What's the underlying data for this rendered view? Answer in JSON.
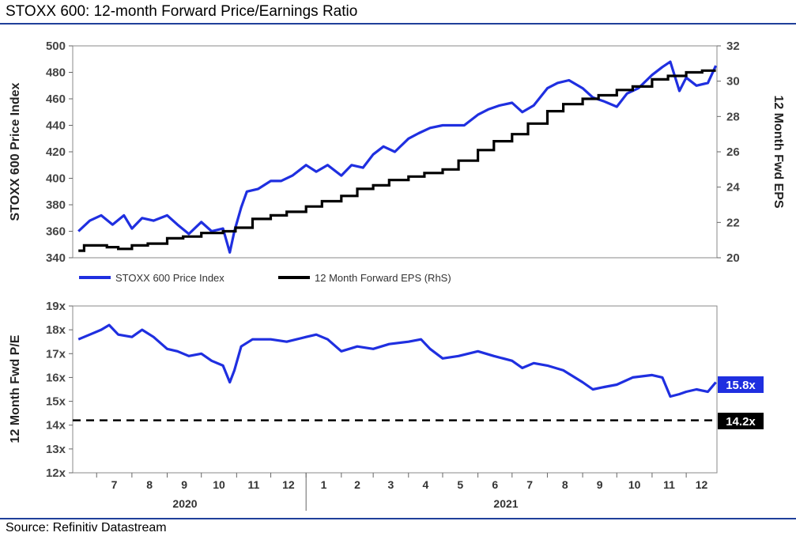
{
  "title": "STOXX 600: 12-month Forward Price/Earnings Ratio",
  "source": "Source: Refinitiv Datastream",
  "colors": {
    "price": "#1f2fe0",
    "eps": "#000000",
    "pe": "#1f2fe0",
    "accent_rule": "#1f3f9a"
  },
  "chart_data": [
    {
      "type": "line",
      "ylabel": "STOXX 600 Price Index",
      "y2label": "12 Month Fwd EPS",
      "ylim": [
        340,
        500
      ],
      "y2lim": [
        20,
        32
      ],
      "yticks": [
        "340",
        "360",
        "380",
        "400",
        "420",
        "440",
        "460",
        "480",
        "500"
      ],
      "y2ticks": [
        "20",
        "22",
        "24",
        "26",
        "28",
        "30",
        "32"
      ],
      "legend": [
        "STOXX 600 Price Index",
        "12 Month Forward EPS (RhS)"
      ],
      "legend_position": "bottom",
      "series": [
        {
          "name": "STOXX 600 Price Index",
          "axis": "left",
          "x": [
            "2020-06-15",
            "2020-06-25",
            "2020-07-05",
            "2020-07-15",
            "2020-07-25",
            "2020-08-01",
            "2020-08-10",
            "2020-08-20",
            "2020-09-01",
            "2020-09-10",
            "2020-09-20",
            "2020-10-01",
            "2020-10-10",
            "2020-10-20",
            "2020-10-26",
            "2020-10-30",
            "2020-11-05",
            "2020-11-10",
            "2020-11-20",
            "2020-12-01",
            "2020-12-10",
            "2020-12-20",
            "2021-01-01",
            "2021-01-10",
            "2021-01-20",
            "2021-02-01",
            "2021-02-10",
            "2021-02-20",
            "2021-03-01",
            "2021-03-10",
            "2021-03-20",
            "2021-04-01",
            "2021-04-10",
            "2021-04-20",
            "2021-05-01",
            "2021-05-10",
            "2021-05-20",
            "2021-06-01",
            "2021-06-10",
            "2021-06-20",
            "2021-07-01",
            "2021-07-10",
            "2021-07-20",
            "2021-08-01",
            "2021-08-10",
            "2021-08-20",
            "2021-09-01",
            "2021-09-10",
            "2021-09-20",
            "2021-10-01",
            "2021-10-10",
            "2021-10-20",
            "2021-11-01",
            "2021-11-10",
            "2021-11-17",
            "2021-11-25",
            "2021-12-01",
            "2021-12-10",
            "2021-12-20",
            "2021-12-27"
          ],
          "values": [
            360,
            368,
            372,
            365,
            372,
            362,
            370,
            368,
            372,
            365,
            358,
            367,
            360,
            362,
            344,
            360,
            378,
            390,
            392,
            398,
            398,
            402,
            410,
            405,
            410,
            402,
            410,
            408,
            418,
            424,
            420,
            430,
            434,
            438,
            440,
            440,
            440,
            448,
            452,
            455,
            457,
            450,
            455,
            468,
            472,
            474,
            468,
            461,
            458,
            454,
            464,
            468,
            478,
            484,
            488,
            466,
            476,
            470,
            472,
            485
          ]
        },
        {
          "name": "12 Month Forward EPS (RhS)",
          "axis": "right",
          "x": [
            "2020-06-15",
            "2020-06-20",
            "2020-07-10",
            "2020-07-20",
            "2020-08-01",
            "2020-08-15",
            "2020-09-01",
            "2020-09-15",
            "2020-10-01",
            "2020-10-20",
            "2020-10-31",
            "2020-11-15",
            "2020-12-01",
            "2020-12-15",
            "2021-01-01",
            "2021-01-15",
            "2021-02-01",
            "2021-02-15",
            "2021-03-01",
            "2021-03-15",
            "2021-04-01",
            "2021-04-15",
            "2021-05-01",
            "2021-05-15",
            "2021-06-01",
            "2021-06-15",
            "2021-07-01",
            "2021-07-15",
            "2021-08-01",
            "2021-08-15",
            "2021-09-01",
            "2021-09-15",
            "2021-10-01",
            "2021-10-15",
            "2021-11-01",
            "2021-11-15",
            "2021-12-01",
            "2021-12-15",
            "2021-12-27"
          ],
          "values": [
            20.4,
            20.7,
            20.6,
            20.5,
            20.7,
            20.8,
            21.1,
            21.2,
            21.4,
            21.5,
            21.7,
            22.2,
            22.4,
            22.6,
            22.9,
            23.2,
            23.5,
            23.9,
            24.1,
            24.4,
            24.6,
            24.8,
            25.0,
            25.5,
            26.1,
            26.6,
            27.0,
            27.6,
            28.3,
            28.7,
            29.0,
            29.2,
            29.5,
            29.7,
            30.1,
            30.3,
            30.5,
            30.6,
            30.6
          ]
        }
      ]
    },
    {
      "type": "line",
      "ylabel": "12 Month Fwd P/E",
      "ylim": [
        12,
        19
      ],
      "yticks": [
        "12x",
        "13x",
        "14x",
        "15x",
        "16x",
        "17x",
        "18x",
        "19x"
      ],
      "reference_line": {
        "value": 14.2,
        "label": "14.2x",
        "style": "dashed"
      },
      "last_value_label": "15.8x",
      "x_months": [
        "7",
        "8",
        "9",
        "10",
        "11",
        "12",
        "1",
        "2",
        "3",
        "4",
        "5",
        "6",
        "7",
        "8",
        "9",
        "10",
        "11",
        "12"
      ],
      "x_years": [
        "2020",
        "2021"
      ],
      "series": [
        {
          "name": "12 Month Fwd P/E",
          "x": [
            "2020-06-15",
            "2020-06-25",
            "2020-07-05",
            "2020-07-12",
            "2020-07-20",
            "2020-08-01",
            "2020-08-10",
            "2020-08-20",
            "2020-09-01",
            "2020-09-10",
            "2020-09-20",
            "2020-10-01",
            "2020-10-10",
            "2020-10-20",
            "2020-10-26",
            "2020-10-30",
            "2020-11-05",
            "2020-11-15",
            "2020-12-01",
            "2020-12-15",
            "2021-01-01",
            "2021-01-10",
            "2021-01-20",
            "2021-02-01",
            "2021-02-15",
            "2021-03-01",
            "2021-03-15",
            "2021-04-01",
            "2021-04-12",
            "2021-04-20",
            "2021-05-01",
            "2021-05-15",
            "2021-06-01",
            "2021-06-15",
            "2021-07-01",
            "2021-07-10",
            "2021-07-20",
            "2021-08-01",
            "2021-08-15",
            "2021-09-01",
            "2021-09-10",
            "2021-09-20",
            "2021-10-01",
            "2021-10-15",
            "2021-11-01",
            "2021-11-10",
            "2021-11-17",
            "2021-11-25",
            "2021-12-01",
            "2021-12-10",
            "2021-12-20",
            "2021-12-27"
          ],
          "values": [
            17.6,
            17.8,
            18.0,
            18.2,
            17.8,
            17.7,
            18.0,
            17.7,
            17.2,
            17.1,
            16.9,
            17.0,
            16.7,
            16.5,
            15.8,
            16.3,
            17.3,
            17.6,
            17.6,
            17.5,
            17.7,
            17.8,
            17.6,
            17.1,
            17.3,
            17.2,
            17.4,
            17.5,
            17.6,
            17.2,
            16.8,
            16.9,
            17.1,
            16.9,
            16.7,
            16.4,
            16.6,
            16.5,
            16.3,
            15.8,
            15.5,
            15.6,
            15.7,
            16.0,
            16.1,
            16.0,
            15.2,
            15.3,
            15.4,
            15.5,
            15.4,
            15.8
          ]
        }
      ]
    }
  ]
}
